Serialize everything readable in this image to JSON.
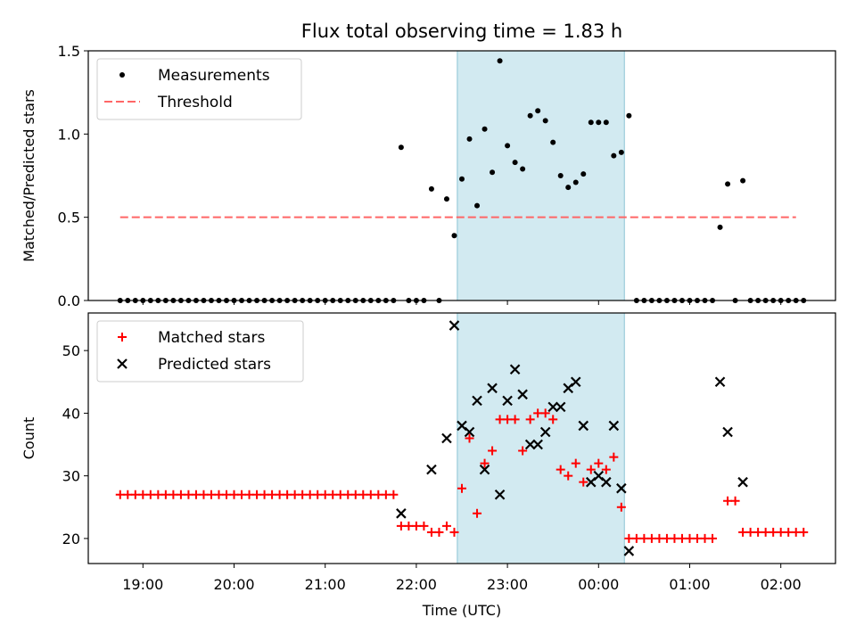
{
  "figure_title": "Flux total observing time = 1.83 h",
  "colors": {
    "shade": "#add8e6",
    "measurement": "#000000",
    "threshold": "#ff6666",
    "matched": "#ff0000",
    "predicted": "#000000"
  },
  "chart_data": [
    {
      "type": "scatter",
      "title": "Flux total observing time = 1.83 h",
      "ylabel": "Matched/Predicted stars",
      "xlabel": "",
      "x_range_hours": [
        18.4,
        26.6
      ],
      "ylim": [
        0,
        1.5
      ],
      "yticks": [
        0.0,
        0.5,
        1.0,
        1.5
      ],
      "ytick_labels": [
        "0.0",
        "0.5",
        "1.0",
        "1.5"
      ],
      "xtick_labels": [],
      "shaded_span": [
        "22:27",
        "00:17"
      ],
      "legend": {
        "position": "upper left",
        "entries": [
          "Measurements",
          "Threshold"
        ]
      },
      "threshold": {
        "name": "Threshold",
        "value": 0.5,
        "x_from": "18:45",
        "x_to": "02:10"
      },
      "series": [
        {
          "name": "Measurements",
          "marker": "dot",
          "points": [
            [
              "18:45",
              0
            ],
            [
              "18:50",
              0
            ],
            [
              "18:55",
              0
            ],
            [
              "19:00",
              0
            ],
            [
              "19:05",
              0
            ],
            [
              "19:10",
              0
            ],
            [
              "19:15",
              0
            ],
            [
              "19:20",
              0
            ],
            [
              "19:25",
              0
            ],
            [
              "19:30",
              0
            ],
            [
              "19:35",
              0
            ],
            [
              "19:40",
              0
            ],
            [
              "19:45",
              0
            ],
            [
              "19:50",
              0
            ],
            [
              "19:55",
              0
            ],
            [
              "20:00",
              0
            ],
            [
              "20:05",
              0
            ],
            [
              "20:10",
              0
            ],
            [
              "20:15",
              0
            ],
            [
              "20:20",
              0
            ],
            [
              "20:25",
              0
            ],
            [
              "20:30",
              0
            ],
            [
              "20:35",
              0
            ],
            [
              "20:40",
              0
            ],
            [
              "20:45",
              0
            ],
            [
              "20:50",
              0
            ],
            [
              "20:55",
              0
            ],
            [
              "21:00",
              0
            ],
            [
              "21:05",
              0
            ],
            [
              "21:10",
              0
            ],
            [
              "21:15",
              0
            ],
            [
              "21:20",
              0
            ],
            [
              "21:25",
              0
            ],
            [
              "21:30",
              0
            ],
            [
              "21:35",
              0
            ],
            [
              "21:40",
              0
            ],
            [
              "21:45",
              0
            ],
            [
              "21:50",
              0.92
            ],
            [
              "21:55",
              0
            ],
            [
              "22:00",
              0
            ],
            [
              "22:05",
              0
            ],
            [
              "22:10",
              0.67
            ],
            [
              "22:15",
              0
            ],
            [
              "22:20",
              0.61
            ],
            [
              "22:25",
              0.39
            ],
            [
              "22:30",
              0.73
            ],
            [
              "22:35",
              0.97
            ],
            [
              "22:40",
              0.57
            ],
            [
              "22:45",
              1.03
            ],
            [
              "22:50",
              0.77
            ],
            [
              "22:55",
              1.44
            ],
            [
              "23:00",
              0.93
            ],
            [
              "23:05",
              0.83
            ],
            [
              "23:10",
              0.79
            ],
            [
              "23:15",
              1.11
            ],
            [
              "23:20",
              1.14
            ],
            [
              "23:25",
              1.08
            ],
            [
              "23:30",
              0.95
            ],
            [
              "23:35",
              0.75
            ],
            [
              "23:40",
              0.68
            ],
            [
              "23:45",
              0.71
            ],
            [
              "23:50",
              0.76
            ],
            [
              "23:55",
              1.07
            ],
            [
              "00:00",
              1.07
            ],
            [
              "00:05",
              1.07
            ],
            [
              "00:10",
              0.87
            ],
            [
              "00:15",
              0.89
            ],
            [
              "00:20",
              1.11
            ],
            [
              "00:25",
              0
            ],
            [
              "00:30",
              0
            ],
            [
              "00:35",
              0
            ],
            [
              "00:40",
              0
            ],
            [
              "00:45",
              0
            ],
            [
              "00:50",
              0
            ],
            [
              "00:55",
              0
            ],
            [
              "01:00",
              0
            ],
            [
              "01:05",
              0
            ],
            [
              "01:10",
              0
            ],
            [
              "01:15",
              0
            ],
            [
              "01:20",
              0.44
            ],
            [
              "01:25",
              0.7
            ],
            [
              "01:30",
              0
            ],
            [
              "01:35",
              0.72
            ],
            [
              "01:40",
              0
            ],
            [
              "01:45",
              0
            ],
            [
              "01:50",
              0
            ],
            [
              "01:55",
              0
            ],
            [
              "02:00",
              0
            ],
            [
              "02:05",
              0
            ],
            [
              "02:10",
              0
            ],
            [
              "02:15",
              0
            ]
          ]
        }
      ]
    },
    {
      "type": "scatter",
      "title": "",
      "ylabel": "Count",
      "xlabel": "Time (UTC)",
      "x_range_hours": [
        18.4,
        26.6
      ],
      "ylim": [
        16,
        56
      ],
      "yticks": [
        20,
        30,
        40,
        50
      ],
      "ytick_labels": [
        "20",
        "30",
        "40",
        "50"
      ],
      "xticks": [
        "19:00",
        "20:00",
        "21:00",
        "22:00",
        "23:00",
        "00:00",
        "01:00",
        "02:00"
      ],
      "xtick_labels": [
        "19:00",
        "20:00",
        "21:00",
        "22:00",
        "23:00",
        "00:00",
        "01:00",
        "02:00"
      ],
      "shaded_span": [
        "22:27",
        "00:17"
      ],
      "legend": {
        "position": "upper left",
        "entries": [
          "Matched stars",
          "Predicted stars"
        ]
      },
      "series": [
        {
          "name": "Matched stars",
          "marker": "plus",
          "points": [
            [
              "18:45",
              27
            ],
            [
              "18:50",
              27
            ],
            [
              "18:55",
              27
            ],
            [
              "19:00",
              27
            ],
            [
              "19:05",
              27
            ],
            [
              "19:10",
              27
            ],
            [
              "19:15",
              27
            ],
            [
              "19:20",
              27
            ],
            [
              "19:25",
              27
            ],
            [
              "19:30",
              27
            ],
            [
              "19:35",
              27
            ],
            [
              "19:40",
              27
            ],
            [
              "19:45",
              27
            ],
            [
              "19:50",
              27
            ],
            [
              "19:55",
              27
            ],
            [
              "20:00",
              27
            ],
            [
              "20:05",
              27
            ],
            [
              "20:10",
              27
            ],
            [
              "20:15",
              27
            ],
            [
              "20:20",
              27
            ],
            [
              "20:25",
              27
            ],
            [
              "20:30",
              27
            ],
            [
              "20:35",
              27
            ],
            [
              "20:40",
              27
            ],
            [
              "20:45",
              27
            ],
            [
              "20:50",
              27
            ],
            [
              "20:55",
              27
            ],
            [
              "21:00",
              27
            ],
            [
              "21:05",
              27
            ],
            [
              "21:10",
              27
            ],
            [
              "21:15",
              27
            ],
            [
              "21:20",
              27
            ],
            [
              "21:25",
              27
            ],
            [
              "21:30",
              27
            ],
            [
              "21:35",
              27
            ],
            [
              "21:40",
              27
            ],
            [
              "21:45",
              27
            ],
            [
              "21:50",
              22
            ],
            [
              "21:55",
              22
            ],
            [
              "22:00",
              22
            ],
            [
              "22:05",
              22
            ],
            [
              "22:10",
              21
            ],
            [
              "22:15",
              21
            ],
            [
              "22:20",
              22
            ],
            [
              "22:25",
              21
            ],
            [
              "22:30",
              28
            ],
            [
              "22:35",
              36
            ],
            [
              "22:40",
              24
            ],
            [
              "22:45",
              32
            ],
            [
              "22:50",
              34
            ],
            [
              "22:55",
              39
            ],
            [
              "23:00",
              39
            ],
            [
              "23:05",
              39
            ],
            [
              "23:10",
              34
            ],
            [
              "23:15",
              39
            ],
            [
              "23:20",
              40
            ],
            [
              "23:25",
              40
            ],
            [
              "23:30",
              39
            ],
            [
              "23:35",
              31
            ],
            [
              "23:40",
              30
            ],
            [
              "23:45",
              32
            ],
            [
              "23:50",
              29
            ],
            [
              "23:55",
              31
            ],
            [
              "00:00",
              32
            ],
            [
              "00:05",
              31
            ],
            [
              "00:10",
              33
            ],
            [
              "00:15",
              25
            ],
            [
              "00:20",
              20
            ],
            [
              "00:25",
              20
            ],
            [
              "00:30",
              20
            ],
            [
              "00:35",
              20
            ],
            [
              "00:40",
              20
            ],
            [
              "00:45",
              20
            ],
            [
              "00:50",
              20
            ],
            [
              "00:55",
              20
            ],
            [
              "01:00",
              20
            ],
            [
              "01:05",
              20
            ],
            [
              "01:10",
              20
            ],
            [
              "01:15",
              20
            ],
            [
              "01:25",
              26
            ],
            [
              "01:30",
              26
            ],
            [
              "01:35",
              21
            ],
            [
              "01:40",
              21
            ],
            [
              "01:45",
              21
            ],
            [
              "01:50",
              21
            ],
            [
              "01:55",
              21
            ],
            [
              "02:00",
              21
            ],
            [
              "02:05",
              21
            ],
            [
              "02:10",
              21
            ],
            [
              "02:15",
              21
            ]
          ]
        },
        {
          "name": "Predicted stars",
          "marker": "x",
          "points": [
            [
              "21:50",
              24
            ],
            [
              "22:10",
              31
            ],
            [
              "22:20",
              36
            ],
            [
              "22:25",
              54
            ],
            [
              "22:30",
              38
            ],
            [
              "22:35",
              37
            ],
            [
              "22:40",
              42
            ],
            [
              "22:45",
              31
            ],
            [
              "22:50",
              44
            ],
            [
              "22:55",
              27
            ],
            [
              "23:00",
              42
            ],
            [
              "23:05",
              47
            ],
            [
              "23:10",
              43
            ],
            [
              "23:15",
              35
            ],
            [
              "23:20",
              35
            ],
            [
              "23:25",
              37
            ],
            [
              "23:30",
              41
            ],
            [
              "23:35",
              41
            ],
            [
              "23:40",
              44
            ],
            [
              "23:45",
              45
            ],
            [
              "23:50",
              38
            ],
            [
              "23:55",
              29
            ],
            [
              "00:00",
              30
            ],
            [
              "00:05",
              29
            ],
            [
              "00:10",
              38
            ],
            [
              "00:15",
              28
            ],
            [
              "00:20",
              18
            ],
            [
              "01:20",
              45
            ],
            [
              "01:25",
              37
            ],
            [
              "01:35",
              29
            ]
          ]
        }
      ]
    }
  ]
}
